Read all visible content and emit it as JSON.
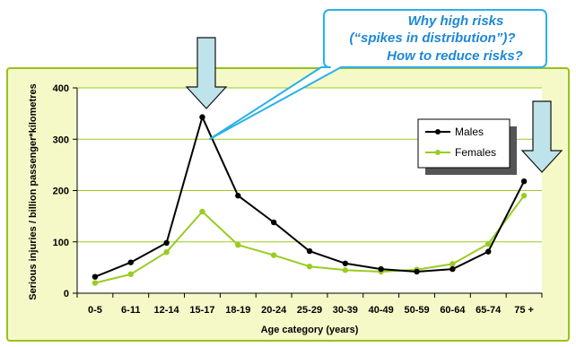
{
  "colors": {
    "panel_bg": "#f5f9c8",
    "panel_border": "#99c01f",
    "gridline": "#9ccc24",
    "males": "#000000",
    "females": "#99cc22",
    "arrow_fill": "#bfe3ea",
    "arrow_stroke": "#111111",
    "callout_fill": "#ffffff",
    "callout_stroke": "#29b1e8",
    "callout_text": "#1e88d6"
  },
  "callout": {
    "lines": [
      "Why high risks",
      "(“spikes in distribution”)?",
      "How to reduce risks?"
    ]
  },
  "icons": [
    "down-arrow-icon",
    "down-arrow-icon"
  ],
  "chart_data": {
    "type": "line",
    "categories": [
      "0-5",
      "6-11",
      "12-14",
      "15-17",
      "18-19",
      "20-24",
      "25-29",
      "30-39",
      "40-49",
      "50-59",
      "60-64",
      "65-74",
      "75 +"
    ],
    "series": [
      {
        "name": "Males",
        "values": [
          32,
          60,
          98,
          343,
          190,
          138,
          82,
          58,
          47,
          42,
          47,
          81,
          218
        ]
      },
      {
        "name": "Females",
        "values": [
          20,
          37,
          80,
          159,
          94,
          74,
          52,
          45,
          42,
          46,
          57,
          96,
          190
        ]
      }
    ],
    "xlabel": "Age category (years)",
    "ylabel": "Serious injuries / billion passenger*kilometres",
    "ylim": [
      0,
      400
    ],
    "yticks": [
      0,
      100,
      200,
      300,
      400
    ],
    "grid": true,
    "legend_position": "top-right"
  }
}
